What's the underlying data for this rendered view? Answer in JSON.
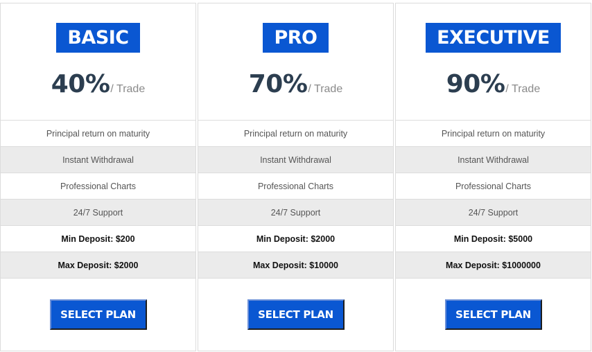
{
  "plans": [
    {
      "name": "BASIC",
      "rate": "40%",
      "per": "/ Trade",
      "features": [
        "Principal return on maturity",
        "Instant Withdrawal",
        "Professional Charts",
        "24/7 Support"
      ],
      "min_deposit": "Min Deposit: $200",
      "max_deposit": "Max Deposit: $2000",
      "button": "SELECT PLAN"
    },
    {
      "name": "PRO",
      "rate": "70%",
      "per": "/ Trade",
      "features": [
        "Principal return on maturity",
        "Instant Withdrawal",
        "Professional Charts",
        "24/7 Support"
      ],
      "min_deposit": "Min Deposit: $2000",
      "max_deposit": "Max Deposit: $10000",
      "button": "SELECT PLAN"
    },
    {
      "name": "EXECUTIVE",
      "rate": "90%",
      "per": "/ Trade",
      "features": [
        "Principal return on maturity",
        "Instant Withdrawal",
        "Professional Charts",
        "24/7 Support"
      ],
      "min_deposit": "Min Deposit: $5000",
      "max_deposit": "Max Deposit: $1000000",
      "button": "SELECT PLAN"
    }
  ],
  "colors": {
    "accent": "#0a57d2",
    "price_text": "#2c3e50",
    "alt_row": "#ebebeb",
    "border": "#dcdcdc"
  }
}
